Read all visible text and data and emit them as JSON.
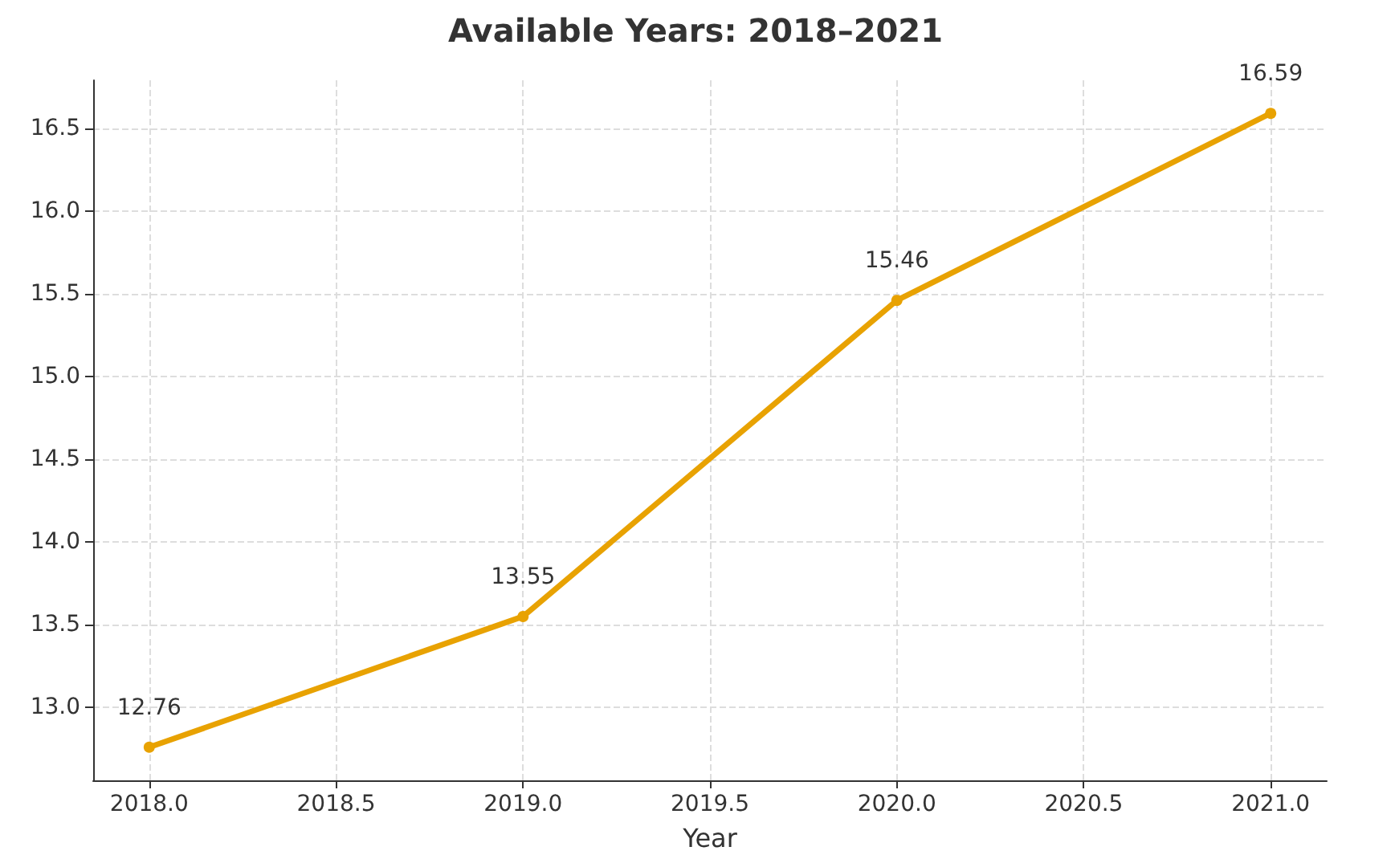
{
  "chart_data": {
    "type": "line",
    "title": "Available Years: 2018–2021",
    "xlabel": "Year",
    "x": [
      2018,
      2019,
      2020,
      2021
    ],
    "series": [
      {
        "color": "#e8a202",
        "values": [
          12.76,
          13.55,
          15.46,
          16.59
        ]
      }
    ],
    "xlim": [
      2017.85,
      2021.15
    ],
    "xticks": [
      {
        "value": 2018,
        "label": "2018.0"
      },
      {
        "value": 2018.5,
        "label": "2018.5"
      },
      {
        "value": 2019,
        "label": "2019.0"
      },
      {
        "value": 2019.5,
        "label": "2019.5"
      },
      {
        "value": 2020,
        "label": "2020.0"
      },
      {
        "value": 2020.5,
        "label": "2020.5"
      },
      {
        "value": 2021,
        "label": "2021.0"
      }
    ],
    "ylim": [
      12.56,
      16.79
    ],
    "yticks": [
      {
        "value": 13,
        "label": "13.0"
      },
      {
        "value": 13.5,
        "label": "13.5"
      },
      {
        "value": 14,
        "label": "14.0"
      },
      {
        "value": 14.5,
        "label": "14.5"
      },
      {
        "value": 15,
        "label": "15.0"
      },
      {
        "value": 15.5,
        "label": "15.5"
      },
      {
        "value": 16,
        "label": "16.0"
      },
      {
        "value": 16.5,
        "label": "16.5"
      }
    ],
    "grid": true,
    "marker": "circle",
    "line_style": "solid",
    "data_labels": true
  }
}
